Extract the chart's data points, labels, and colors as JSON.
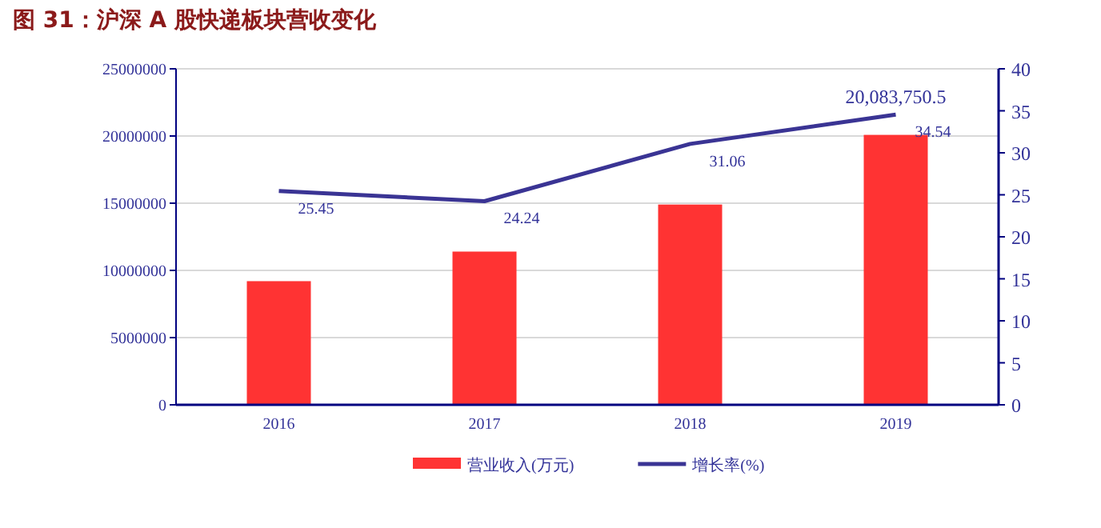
{
  "chart_data": {
    "type": "bar",
    "title": "图 31：沪深 A 股快递板块营收变化",
    "categories": [
      "2016",
      "2017",
      "2018",
      "2019"
    ],
    "series": [
      {
        "name": "营业收入(万元)",
        "color": "#ff3333",
        "values": [
          9200000,
          11400000,
          14900000,
          20083750.5
        ],
        "value_labels": [
          null,
          null,
          null,
          "20,083,750.5"
        ]
      },
      {
        "name": "增长率(%)",
        "type": "line",
        "axis": "y2",
        "color": "#3a3494",
        "values": [
          25.45,
          24.24,
          31.06,
          34.54
        ],
        "value_labels": [
          "25.45",
          "24.24",
          "31.06",
          "34.54"
        ],
        "marker": "none",
        "line_style": "solid"
      }
    ],
    "ylim": [
      0,
      25000000
    ],
    "yticks": [
      0,
      5000000,
      10000000,
      15000000,
      20000000,
      25000000
    ],
    "y2lim": [
      0,
      40
    ],
    "y2ticks": [
      0,
      5,
      10,
      15,
      20,
      25,
      30,
      35,
      40
    ],
    "grid": "y",
    "legend": "bottom"
  }
}
